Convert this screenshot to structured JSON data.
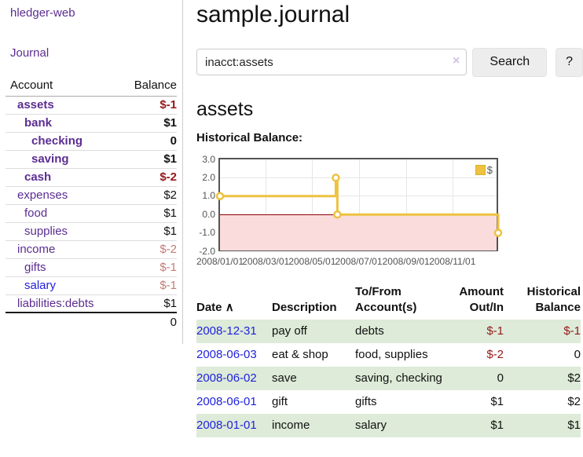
{
  "sidebar": {
    "brand": "hledger-web",
    "journal_link": "Journal",
    "accounts": {
      "col_account": "Account",
      "col_balance": "Balance",
      "rows": [
        {
          "name": "assets",
          "indent": 1,
          "bold": true,
          "balance": "$-1",
          "neg": "strong",
          "link": "visited"
        },
        {
          "name": "bank",
          "indent": 2,
          "bold": true,
          "balance": "$1",
          "neg": "none",
          "link": "visited"
        },
        {
          "name": "checking",
          "indent": 3,
          "bold": true,
          "balance": "0",
          "neg": "none",
          "link": "visited"
        },
        {
          "name": "saving",
          "indent": 3,
          "bold": true,
          "balance": "$1",
          "neg": "none",
          "link": "visited"
        },
        {
          "name": "cash",
          "indent": 2,
          "bold": true,
          "balance": "$-2",
          "neg": "strong",
          "link": "visited"
        },
        {
          "name": "expenses",
          "indent": 1,
          "bold": false,
          "balance": "$2",
          "neg": "none",
          "link": "visited"
        },
        {
          "name": "food",
          "indent": 2,
          "bold": false,
          "balance": "$1",
          "neg": "none",
          "link": "visited"
        },
        {
          "name": "supplies",
          "indent": 2,
          "bold": false,
          "balance": "$1",
          "neg": "none",
          "link": "visited"
        },
        {
          "name": "income",
          "indent": 1,
          "bold": false,
          "balance": "$-2",
          "neg": "dim",
          "link": "visited"
        },
        {
          "name": "gifts",
          "indent": 2,
          "bold": false,
          "balance": "$-1",
          "neg": "dim",
          "link": "visited"
        },
        {
          "name": "salary",
          "indent": 2,
          "bold": false,
          "balance": "$-1",
          "neg": "dim",
          "link": "unvisited"
        },
        {
          "name": "liabilities:debts",
          "indent": 1,
          "bold": false,
          "balance": "$1",
          "neg": "none",
          "link": "visited"
        }
      ],
      "total": "0"
    }
  },
  "header": {
    "title": "sample.journal"
  },
  "search": {
    "value": "inacct:assets",
    "clear_icon": "×",
    "button_label": "Search",
    "help_label": "?"
  },
  "account_page": {
    "heading": "assets",
    "chart_label": "Historical Balance:"
  },
  "chart_data": {
    "type": "line",
    "title": "Historical Balance",
    "step": true,
    "ylim": [
      -2,
      3
    ],
    "yticks": [
      "3.0",
      "2.0",
      "1.0",
      "0.0",
      "-1.0",
      "-2.0"
    ],
    "ytick_values": [
      3,
      2,
      1,
      0,
      -1,
      -2
    ],
    "xlim_days": [
      0,
      365
    ],
    "xticks": [
      {
        "label": "2008/01/01",
        "day": 0
      },
      {
        "label": "2008/03/01",
        "day": 60
      },
      {
        "label": "2008/05/01",
        "day": 121
      },
      {
        "label": "2008/07/01",
        "day": 182
      },
      {
        "label": "2008/09/01",
        "day": 244
      },
      {
        "label": "2008/11/01",
        "day": 305
      }
    ],
    "series": [
      {
        "name": "$",
        "color": "#edc240",
        "points": [
          {
            "date": "2008-01-01",
            "day": 0,
            "value": 1
          },
          {
            "date": "2008-06-01",
            "day": 152,
            "value": 2
          },
          {
            "date": "2008-06-03",
            "day": 154,
            "value": 0
          },
          {
            "date": "2008-12-31",
            "day": 365,
            "value": -1
          }
        ]
      }
    ],
    "negative_region_color": "#fbdcdc",
    "zero_line_color": "#8b0000",
    "grid_color": "#e6e6e6",
    "legend": {
      "label": "$",
      "swatch_color": "#edc240",
      "position": "top-right"
    }
  },
  "register_table": {
    "sort_indicator": "∧",
    "columns": [
      "Date",
      "Description",
      "To/From Account(s)",
      "Amount Out/In",
      "Historical Balance"
    ],
    "rows": [
      {
        "date": "2008-12-31",
        "description": "pay off",
        "accounts": "debts",
        "amount": "$-1",
        "amount_neg": true,
        "balance": "$-1",
        "balance_neg": true,
        "stripe": true
      },
      {
        "date": "2008-06-03",
        "description": "eat & shop",
        "accounts": "food, supplies",
        "amount": "$-2",
        "amount_neg": true,
        "balance": "0",
        "balance_neg": false,
        "stripe": false
      },
      {
        "date": "2008-06-02",
        "description": "save",
        "accounts": "saving, checking",
        "amount": "0",
        "amount_neg": false,
        "balance": "$2",
        "balance_neg": false,
        "stripe": true
      },
      {
        "date": "2008-06-01",
        "description": "gift",
        "accounts": "gifts",
        "amount": "$1",
        "amount_neg": false,
        "balance": "$2",
        "balance_neg": false,
        "stripe": false
      },
      {
        "date": "2008-01-01",
        "description": "income",
        "accounts": "salary",
        "amount": "$1",
        "amount_neg": false,
        "balance": "$1",
        "balance_neg": false,
        "stripe": true
      }
    ]
  }
}
